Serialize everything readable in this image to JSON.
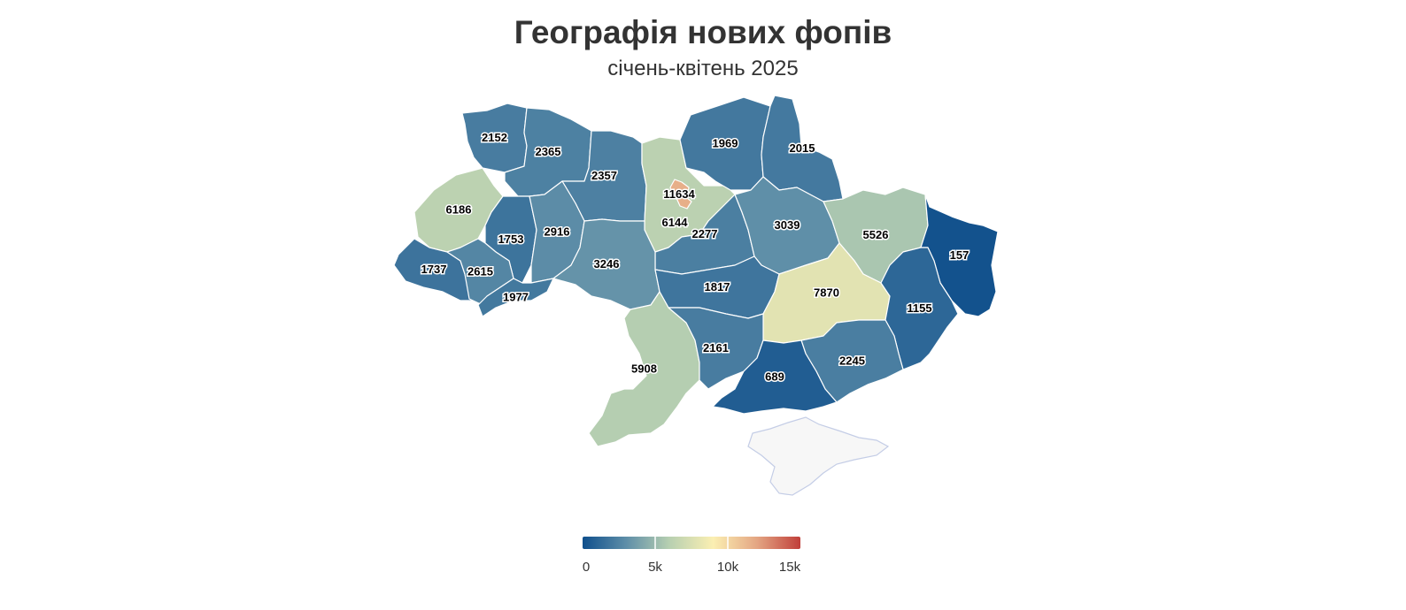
{
  "header": {
    "title": "Географія нових фопів",
    "subtitle": "січень-квітень 2025"
  },
  "colors": {
    "scale": [
      "#0f4f8c",
      "#5e8ea8",
      "#b8d0b1",
      "#fbefb2",
      "#e4a683",
      "#c03f3a"
    ],
    "no_data": "#f7f7f7"
  },
  "legend": {
    "min": 0,
    "max": 15000,
    "ticks": [
      "0",
      "5k",
      "10k",
      "15k"
    ]
  },
  "chart_data": {
    "type": "choropleth",
    "title": "Географія нових фопів",
    "subtitle": "січень-квітень 2025",
    "color_range": [
      0,
      15000
    ],
    "regions": [
      {
        "id": "volyn",
        "value": 2152
      },
      {
        "id": "rivne",
        "value": 2365
      },
      {
        "id": "zhytomyr",
        "value": 2357
      },
      {
        "id": "kyiv-oblast",
        "value": 6144
      },
      {
        "id": "kyiv-city",
        "value": 11634
      },
      {
        "id": "chernihiv",
        "value": 1969
      },
      {
        "id": "sumy",
        "value": 2015
      },
      {
        "id": "lviv",
        "value": 6186
      },
      {
        "id": "ternopil",
        "value": 1753
      },
      {
        "id": "khmelnytskyi",
        "value": 2916
      },
      {
        "id": "cherkasy",
        "value": 2277
      },
      {
        "id": "poltava",
        "value": 3039
      },
      {
        "id": "kharkiv",
        "value": 5526
      },
      {
        "id": "luhansk",
        "value": 157
      },
      {
        "id": "zakarpattia",
        "value": 1737
      },
      {
        "id": "ivano-frankivsk",
        "value": 2615
      },
      {
        "id": "chernivtsi",
        "value": 1977
      },
      {
        "id": "vinnytsia",
        "value": 3246
      },
      {
        "id": "kirovohrad",
        "value": 1817
      },
      {
        "id": "dnipropetrovsk",
        "value": 7870
      },
      {
        "id": "donetsk",
        "value": 1155
      },
      {
        "id": "odesa",
        "value": 5908
      },
      {
        "id": "mykolaiv",
        "value": 2161
      },
      {
        "id": "zaporizhzhia",
        "value": 2245
      },
      {
        "id": "kherson",
        "value": 689
      }
    ]
  }
}
